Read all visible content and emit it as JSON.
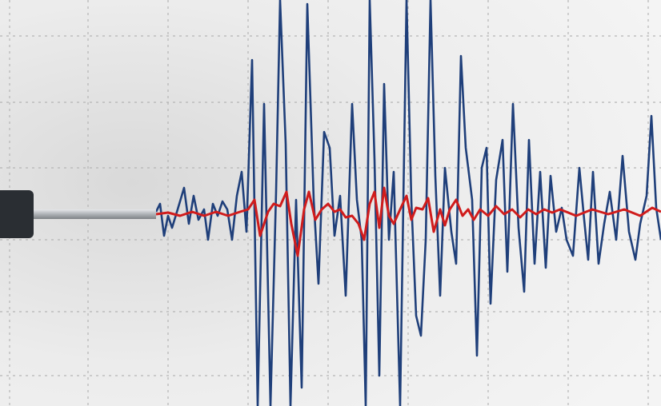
{
  "colors": {
    "paper": "#eeeeee",
    "grid": "#b5b5b5",
    "primary_trace": "#1f3f7a",
    "secondary_trace": "#d01c1c",
    "stylus_body": "#2a2e33",
    "stylus_rod": "#b8bcc0"
  }
}
